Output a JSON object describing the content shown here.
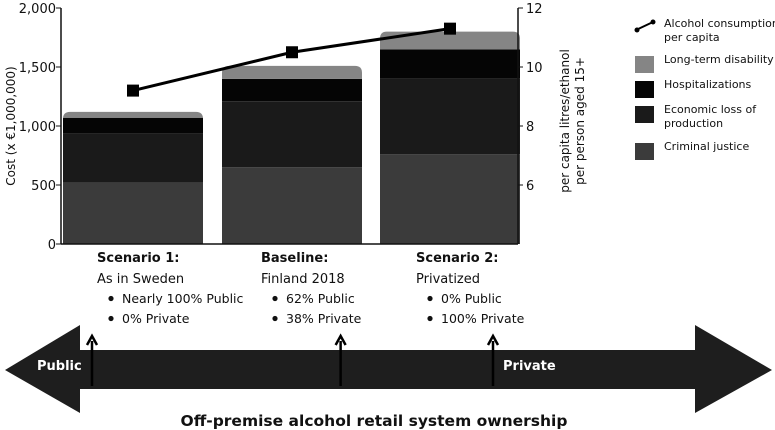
{
  "colors": {
    "criminal_justice": "#3b3b3b",
    "economic_loss": "#1a1a1a",
    "hospitalizations": "#050505",
    "long_term_disability": "#858585",
    "line": "#000000",
    "ownership_arrow": "#1e1e1e"
  },
  "chart_data": {
    "type": "bar",
    "categories": [
      "Scenario 1",
      "Baseline",
      "Scenario 2"
    ],
    "stacked": true,
    "series": [
      {
        "name": "Criminal justice",
        "values": [
          520,
          650,
          760
        ]
      },
      {
        "name": "Economic loss of production",
        "values": [
          420,
          560,
          640
        ]
      },
      {
        "name": "Hospitalizations",
        "values": [
          130,
          190,
          250
        ]
      },
      {
        "name": "Long-term disability",
        "values": [
          50,
          110,
          150
        ]
      }
    ],
    "line_series": {
      "name": "Alcohol consumption per capita",
      "axis": "right",
      "values": [
        9.2,
        10.5,
        11.3
      ]
    },
    "ylabel": "Cost (x €1,000,000)",
    "ylim": [
      0,
      2000
    ],
    "yticks": [
      "0",
      "500",
      "1,000",
      "1,500",
      "2,000"
    ],
    "y2label_lines": [
      "per capita litres/ethanol",
      "per person aged 15+"
    ],
    "y2lim": [
      4,
      12
    ],
    "y2ticks": [
      "6",
      "8",
      "10",
      "12"
    ],
    "grid": false,
    "legend_position": "right"
  },
  "legend": [
    {
      "key": "line",
      "lines": [
        "Alcohol consumption",
        "per capita"
      ]
    },
    {
      "key": "long_term_disability",
      "lines": [
        "Long-term disability"
      ]
    },
    {
      "key": "hospitalizations",
      "lines": [
        "Hospitalizations"
      ]
    },
    {
      "key": "economic_loss",
      "lines": [
        "Economic loss of",
        "production"
      ]
    },
    {
      "key": "criminal_justice",
      "lines": [
        "Criminal justice"
      ]
    }
  ],
  "scenarios": [
    {
      "title": "Scenario 1:",
      "subtitle": "As in Sweden",
      "bullets": [
        "Nearly 100% Public",
        "0% Private"
      ]
    },
    {
      "title": "Baseline:",
      "subtitle": "Finland 2018",
      "bullets": [
        "62% Public",
        "38% Private"
      ]
    },
    {
      "title": "Scenario 2:",
      "subtitle": "Privatized",
      "bullets": [
        "0% Public",
        "100% Private"
      ]
    }
  ],
  "ownership": {
    "left_label": "Public",
    "right_label": "Private",
    "positions": [
      0.0,
      0.62,
      1.0
    ],
    "title": "Off-premise alcohol retail system ownership"
  }
}
